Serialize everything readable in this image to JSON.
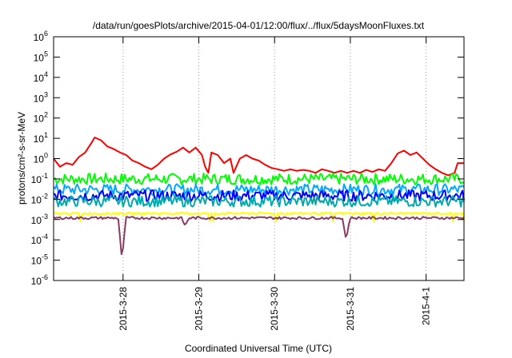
{
  "chart_data": {
    "type": "line",
    "title": "/data/run/goesPlots/archive/2015-04-01/12:00/flux/../flux/5daysMoonFluxes.txt",
    "xlabel": "Coordinated Universal Time (UTC)",
    "ylabel": "protons/cm²-s-sr-MeV",
    "yscale": "log",
    "ylim": [
      1e-06,
      1000000.0
    ],
    "y_ticks": [
      {
        "value": 1e-06,
        "base": "10",
        "exp": "-6"
      },
      {
        "value": 1e-05,
        "base": "10",
        "exp": "-5"
      },
      {
        "value": 0.0001,
        "base": "10",
        "exp": "-4"
      },
      {
        "value": 0.001,
        "base": "10",
        "exp": "-3"
      },
      {
        "value": 0.01,
        "base": "10",
        "exp": "-2"
      },
      {
        "value": 0.1,
        "base": "10",
        "exp": "-1"
      },
      {
        "value": 1,
        "base": "10",
        "exp": "0"
      },
      {
        "value": 10,
        "base": "10",
        "exp": "1"
      },
      {
        "value": 100,
        "base": "10",
        "exp": "2"
      },
      {
        "value": 1000,
        "base": "10",
        "exp": "3"
      },
      {
        "value": 10000,
        "base": "10",
        "exp": "4"
      },
      {
        "value": 100000,
        "base": "10",
        "exp": "5"
      },
      {
        "value": 1000000,
        "base": "10",
        "exp": "6"
      }
    ],
    "xlim": [
      "2015-03-27T02:00",
      "2015-04-01T12:00"
    ],
    "x_ticks": [
      {
        "value": "2015-03-28T00:00",
        "label": "2015-3-28"
      },
      {
        "value": "2015-03-29T00:00",
        "label": "2015-3-29"
      },
      {
        "value": "2015-03-30T00:00",
        "label": "2015-3-30"
      },
      {
        "value": "2015-03-31T00:00",
        "label": "2015-3-31"
      },
      {
        "value": "2015-04-01T00:00",
        "label": "2015-4-1"
      }
    ],
    "grid": "vertical dotted at x ticks",
    "series": [
      {
        "color": "#ff0000",
        "points": [
          [
            "2015-03-27T02:00",
            1.0
          ],
          [
            "2015-03-27T04:00",
            0.4
          ],
          [
            "2015-03-27T06:00",
            0.6
          ],
          [
            "2015-03-27T08:00",
            0.5
          ],
          [
            "2015-03-27T10:00",
            1.2
          ],
          [
            "2015-03-27T12:00",
            2.0
          ],
          [
            "2015-03-27T14:00",
            6.0
          ],
          [
            "2015-03-27T15:00",
            11.0
          ],
          [
            "2015-03-27T17:00",
            8.0
          ],
          [
            "2015-03-27T19:00",
            4.0
          ],
          [
            "2015-03-27T21:00",
            3.0
          ],
          [
            "2015-03-27T23:00",
            2.0
          ],
          [
            "2015-03-28T01:00",
            1.5
          ],
          [
            "2015-03-28T03:00",
            0.8
          ],
          [
            "2015-03-28T05:00",
            0.6
          ],
          [
            "2015-03-28T07:00",
            0.4
          ],
          [
            "2015-03-28T09:00",
            0.3
          ],
          [
            "2015-03-28T11:00",
            0.5
          ],
          [
            "2015-03-28T13:00",
            1.0
          ],
          [
            "2015-03-28T15:00",
            1.6
          ],
          [
            "2015-03-28T17:00",
            2.2
          ],
          [
            "2015-03-28T19:00",
            3.5
          ],
          [
            "2015-03-28T21:00",
            2.0
          ],
          [
            "2015-03-28T23:00",
            3.5
          ],
          [
            "2015-03-29T01:00",
            1.5
          ],
          [
            "2015-03-29T02:00",
            0.4
          ],
          [
            "2015-03-29T03:00",
            0.2
          ],
          [
            "2015-03-29T04:00",
            2.0
          ],
          [
            "2015-03-29T06:00",
            1.5
          ],
          [
            "2015-03-29T08:00",
            0.6
          ],
          [
            "2015-03-29T10:00",
            1.0
          ],
          [
            "2015-03-29T11:00",
            0.2
          ],
          [
            "2015-03-29T13:00",
            1.0
          ],
          [
            "2015-03-29T15:00",
            1.5
          ],
          [
            "2015-03-29T17:00",
            1.0
          ],
          [
            "2015-03-29T19:00",
            0.8
          ],
          [
            "2015-03-29T21:00",
            0.5
          ],
          [
            "2015-03-29T23:00",
            0.35
          ],
          [
            "2015-03-30T01:00",
            0.3
          ],
          [
            "2015-03-30T03:00",
            0.25
          ],
          [
            "2015-03-30T05:00",
            0.3
          ],
          [
            "2015-03-30T07:00",
            0.25
          ],
          [
            "2015-03-30T09:00",
            0.28
          ],
          [
            "2015-03-30T11:00",
            0.25
          ],
          [
            "2015-03-30T13:00",
            0.2
          ],
          [
            "2015-03-30T15:00",
            0.3
          ],
          [
            "2015-03-30T17:00",
            0.25
          ],
          [
            "2015-03-30T19:00",
            0.2
          ],
          [
            "2015-03-30T21:00",
            0.25
          ],
          [
            "2015-03-30T23:00",
            0.2
          ],
          [
            "2015-03-31T01:00",
            0.25
          ],
          [
            "2015-03-31T03:00",
            0.2
          ],
          [
            "2015-03-31T05:00",
            0.28
          ],
          [
            "2015-03-31T07:00",
            0.22
          ],
          [
            "2015-03-31T09:00",
            0.3
          ],
          [
            "2015-03-31T11:00",
            0.25
          ],
          [
            "2015-03-31T13:00",
            0.6
          ],
          [
            "2015-03-31T15:00",
            1.8
          ],
          [
            "2015-03-31T17:00",
            2.5
          ],
          [
            "2015-03-31T19:00",
            1.5
          ],
          [
            "2015-03-31T21:00",
            2.0
          ],
          [
            "2015-03-31T23:00",
            1.0
          ],
          [
            "2015-04-01T01:00",
            0.5
          ],
          [
            "2015-04-01T03:00",
            0.3
          ],
          [
            "2015-04-01T05:00",
            0.2
          ],
          [
            "2015-04-01T07:00",
            0.15
          ],
          [
            "2015-04-01T09:00",
            0.2
          ],
          [
            "2015-04-01T10:00",
            0.6
          ],
          [
            "2015-04-01T12:00",
            0.6
          ]
        ]
      },
      {
        "color": "#00ff00",
        "level": 0.1,
        "pattern": "noisy 0.06-0.15"
      },
      {
        "color": "#00aaff",
        "level": 0.03,
        "pattern": "noisy"
      },
      {
        "color": "#0000ff",
        "level": 0.015,
        "pattern": "noisy"
      },
      {
        "color": "#00aaaa",
        "level": 0.008,
        "pattern": "noisy"
      },
      {
        "color": "#ffff00",
        "level": 0.002,
        "pattern": "flat with dips"
      },
      {
        "color": "#8b3a62",
        "level": 0.0012,
        "pattern": "flat",
        "dips": [
          [
            "2015-03-27T23:40",
            1e-05
          ],
          [
            "2015-03-28T19:40",
            0.0005
          ],
          [
            "2015-03-30T22:40",
            0.0001
          ]
        ]
      }
    ]
  }
}
